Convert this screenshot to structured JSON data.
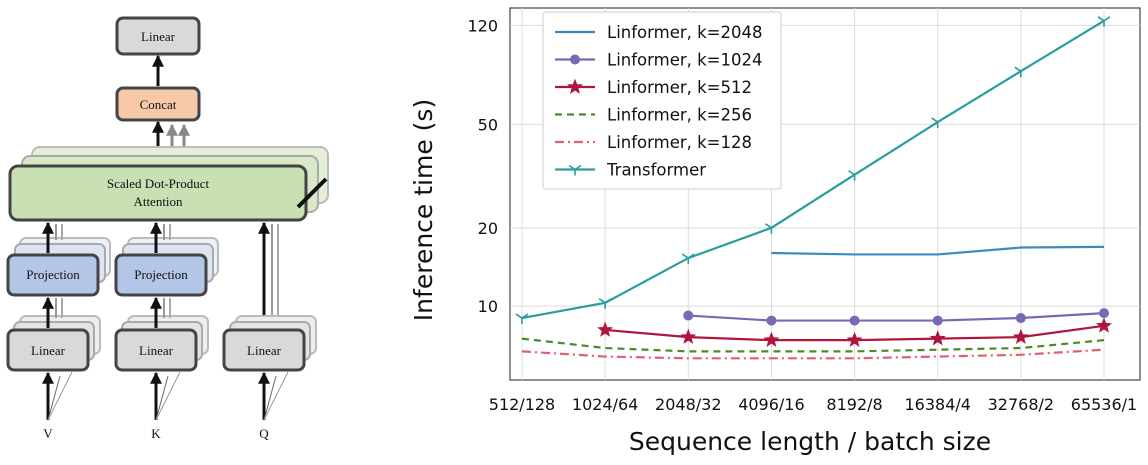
{
  "diagram": {
    "linear_top": "Linear",
    "concat": "Concat",
    "attention_line1": "Scaled Dot-Product",
    "attention_line2": "Attention",
    "projection_left": "Projection",
    "projection_right": "Projection",
    "linear_v": "Linear",
    "linear_k": "Linear",
    "linear_q": "Linear",
    "input_v": "V",
    "input_k": "K",
    "input_q": "Q",
    "colors": {
      "linear": "#d9d9d9",
      "concat": "#f8c9a8",
      "attention": "#c8e0b4",
      "projection": "#b4c6e7"
    }
  },
  "chart_data": {
    "type": "line",
    "categories": [
      "512/128",
      "1024/64",
      "2048/32",
      "4096/16",
      "8192/8",
      "16384/4",
      "32768/2",
      "65536/1"
    ],
    "xlabel": "Sequence length / batch size",
    "ylabel": "Inference time (s)",
    "yscale": "log",
    "ylim": [
      5.2,
      140
    ],
    "yticks": [
      10,
      20,
      50,
      120
    ],
    "grid": true,
    "legend_position": "top-left",
    "series": [
      {
        "name": "Linformer, k=2048",
        "color": "#3b8bc2",
        "marker": "none",
        "dash": "solid",
        "values": [
          null,
          null,
          null,
          16,
          15.8,
          15.8,
          16.8,
          16.9
        ]
      },
      {
        "name": "Linformer, k=1024",
        "color": "#7b68b5",
        "marker": "circle",
        "dash": "solid",
        "values": [
          null,
          null,
          9.2,
          8.8,
          8.8,
          8.8,
          9.0,
          9.4
        ]
      },
      {
        "name": "Linformer, k=512",
        "color": "#b0153c",
        "marker": "star",
        "dash": "solid",
        "values": [
          null,
          8.1,
          7.6,
          7.4,
          7.4,
          7.5,
          7.6,
          8.4
        ]
      },
      {
        "name": "Linformer, k=256",
        "color": "#4a8a2a",
        "marker": "none",
        "dash": "dashed",
        "values": [
          7.5,
          6.9,
          6.7,
          6.7,
          6.7,
          6.8,
          6.9,
          7.4
        ]
      },
      {
        "name": "Linformer, k=128",
        "color": "#e06070",
        "marker": "none",
        "dash": "dashdot",
        "values": [
          6.7,
          6.4,
          6.3,
          6.3,
          6.3,
          6.4,
          6.5,
          6.8
        ]
      },
      {
        "name": "Transformer",
        "color": "#2a9d9d",
        "marker": "tri_down",
        "dash": "solid",
        "values": [
          9.0,
          10.3,
          15.3,
          20,
          32,
          51,
          80,
          125
        ]
      }
    ]
  }
}
